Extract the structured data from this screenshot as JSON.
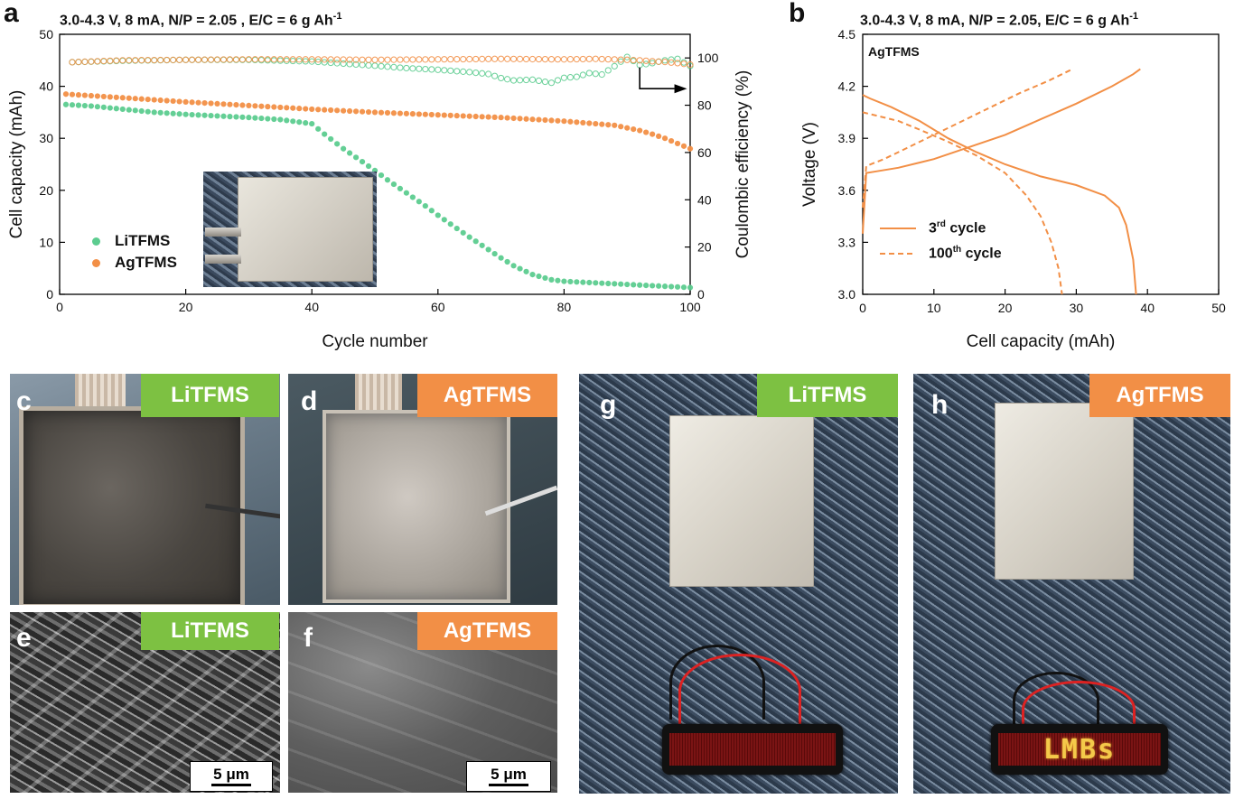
{
  "panels": {
    "a": {
      "label": "a",
      "condition": "3.0-4.3 V, 8 mA, N/P = 2.05 , E/C = 6 g Ah",
      "condition_sup": "-1",
      "legend": [
        "LiTFMS",
        "AgTFMS"
      ]
    },
    "b": {
      "label": "b",
      "condition": "3.0-4.3 V, 8 mA, N/P = 2.05, E/C = 6 g Ah",
      "condition_sup": "-1",
      "inset_label": "AgTFMS",
      "legend_3rd_num": "3",
      "legend_3rd_sup": "rd",
      "legend_3rd_text": " cycle",
      "legend_100_num": "100",
      "legend_100_sup": "th",
      "legend_100_text": " cycle"
    },
    "c": {
      "label": "c",
      "tag": "LiTFMS"
    },
    "d": {
      "label": "d",
      "tag": "AgTFMS"
    },
    "e": {
      "label": "e",
      "tag": "LiTFMS",
      "scale": "5 μm"
    },
    "f": {
      "label": "f",
      "tag": "AgTFMS",
      "scale": "5 μm"
    },
    "g": {
      "label": "g",
      "tag": "LiTFMS"
    },
    "h": {
      "label": "h",
      "tag": "AgTFMS",
      "led_text": "LMBs"
    }
  },
  "colors": {
    "green": "#5ccc8f",
    "orange": "#f28f46",
    "tag_green": "#7dc142",
    "tag_orange": "#f28f46"
  },
  "chart_data": [
    {
      "type": "scatter",
      "title": "3.0-4.3 V, 8 mA, N/P = 2.05 , E/C = 6 g Ah-1",
      "xlabel": "Cycle number",
      "ylabel": "Cell capacity (mAh)",
      "y2label": "Coulombic efficiency (%)",
      "xlim": [
        0,
        100
      ],
      "ylim": [
        0,
        50
      ],
      "y2lim": [
        0,
        110
      ],
      "xticks": [
        0,
        20,
        40,
        60,
        80,
        100
      ],
      "yticks": [
        0,
        10,
        20,
        30,
        40,
        50
      ],
      "y2ticks": [
        0,
        20,
        40,
        60,
        80,
        100
      ],
      "legend": "lower-left",
      "series": [
        {
          "name": "LiTFMS",
          "axis": "left",
          "marker": "filled",
          "x": [
            1,
            5,
            10,
            15,
            20,
            25,
            30,
            35,
            40,
            42,
            45,
            48,
            50,
            52,
            55,
            58,
            60,
            62,
            65,
            68,
            70,
            72,
            75,
            78,
            80,
            85,
            90,
            95,
            100
          ],
          "values": [
            36.5,
            36.2,
            35.6,
            35.0,
            34.6,
            34.3,
            34.0,
            33.6,
            32.8,
            30.8,
            28.0,
            25.5,
            23.8,
            22.0,
            19.5,
            17.0,
            15.2,
            13.5,
            11.0,
            8.6,
            7.0,
            5.5,
            3.8,
            2.8,
            2.5,
            2.2,
            1.9,
            1.6,
            1.3
          ]
        },
        {
          "name": "AgTFMS",
          "axis": "left",
          "marker": "filled",
          "x": [
            1,
            10,
            20,
            30,
            40,
            50,
            60,
            70,
            80,
            85,
            88,
            90,
            92,
            94,
            96,
            98,
            100
          ],
          "values": [
            38.5,
            37.8,
            37.0,
            36.3,
            35.6,
            35.0,
            34.5,
            34.0,
            33.3,
            32.8,
            32.5,
            32.0,
            31.5,
            30.8,
            30.0,
            29.0,
            28.0
          ]
        },
        {
          "name": "LiTFMS CE",
          "axis": "right",
          "marker": "open",
          "x": [
            2,
            10,
            20,
            30,
            40,
            45,
            50,
            55,
            60,
            65,
            68,
            70,
            72,
            75,
            78,
            80,
            82,
            84,
            86,
            88,
            90,
            92,
            94,
            96,
            98,
            100
          ],
          "values": [
            98.2,
            98.8,
            99.2,
            99.2,
            98.5,
            97.6,
            96.7,
            95.7,
            95.0,
            94.0,
            93.2,
            91.5,
            90.5,
            90.8,
            89.5,
            91.6,
            92.0,
            93.6,
            93.0,
            96.5,
            100.4,
            97.0,
            97.8,
            99.0,
            99.6,
            96.6
          ]
        },
        {
          "name": "AgTFMS CE",
          "axis": "right",
          "marker": "open",
          "x": [
            2,
            10,
            20,
            30,
            40,
            50,
            60,
            70,
            80,
            85,
            90,
            92,
            94,
            96,
            98,
            100
          ],
          "values": [
            98.2,
            99.0,
            99.2,
            99.4,
            99.4,
            99.2,
            99.4,
            99.6,
            99.4,
            99.6,
            99.2,
            99.0,
            98.6,
            98.3,
            97.8,
            97.2
          ]
        }
      ]
    },
    {
      "type": "line",
      "title": "3.0-4.3 V, 8 mA, N/P = 2.05, E/C = 6 g Ah-1",
      "xlabel": "Cell capacity (mAh)",
      "ylabel": "Voltage (V)",
      "xlim": [
        0,
        50
      ],
      "ylim": [
        3.0,
        4.5
      ],
      "xticks": [
        0,
        10,
        20,
        30,
        40,
        50
      ],
      "yticks": [
        3.0,
        3.3,
        3.6,
        3.9,
        4.2,
        4.5
      ],
      "annotation": "AgTFMS",
      "legend": "lower-left",
      "series": [
        {
          "name": "3rd cycle charge",
          "style": "solid",
          "x": [
            0,
            0.5,
            2,
            5,
            10,
            15,
            20,
            25,
            30,
            35,
            38,
            39
          ],
          "values": [
            3.35,
            3.7,
            3.71,
            3.73,
            3.78,
            3.85,
            3.92,
            4.01,
            4.1,
            4.2,
            4.27,
            4.3
          ]
        },
        {
          "name": "3rd cycle discharge",
          "style": "solid",
          "x": [
            0,
            1,
            4,
            8,
            12,
            16,
            20,
            25,
            30,
            34,
            36,
            37,
            38,
            38.4
          ],
          "values": [
            4.15,
            4.13,
            4.08,
            4.0,
            3.9,
            3.82,
            3.75,
            3.68,
            3.63,
            3.57,
            3.5,
            3.4,
            3.2,
            3.0
          ]
        },
        {
          "name": "100th cycle charge",
          "style": "dashed",
          "x": [
            0,
            0.5,
            3,
            7,
            12,
            17,
            22,
            26,
            29.5
          ],
          "values": [
            3.5,
            3.74,
            3.78,
            3.86,
            3.96,
            4.06,
            4.16,
            4.23,
            4.3
          ]
        },
        {
          "name": "100th cycle discharge",
          "style": "dashed",
          "x": [
            0,
            2,
            5,
            8,
            12,
            16,
            20,
            23,
            25,
            26.5,
            27.5,
            28
          ],
          "values": [
            4.05,
            4.03,
            4.0,
            3.95,
            3.88,
            3.8,
            3.7,
            3.57,
            3.45,
            3.3,
            3.15,
            3.0
          ]
        }
      ]
    }
  ]
}
